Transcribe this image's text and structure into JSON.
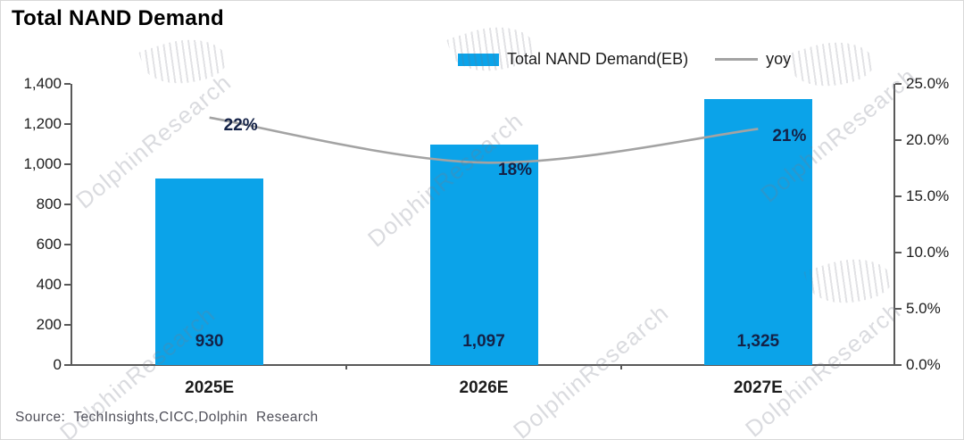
{
  "legend": {
    "items": [
      {
        "label": "Total NAND Demand(EB)",
        "marker": "bar-swatch",
        "color": "#0ba3e9"
      },
      {
        "label": "yoy",
        "marker": "line",
        "color": "#a3a3a3"
      }
    ]
  },
  "source_note": "Source:  TechInsights,CICC,Dolphin  Research",
  "watermark_text": "DolphinResearch",
  "chart_data": {
    "type": "bar",
    "title": "Total NAND Demand",
    "categories": [
      "2025E",
      "2026E",
      "2027E"
    ],
    "series": [
      {
        "name": "Total NAND Demand(EB)",
        "type": "bar",
        "axis": "left",
        "color": "#0ba3e9",
        "values": [
          930,
          1097,
          1325
        ],
        "data_labels": [
          "930",
          "1,097",
          "1,325"
        ]
      },
      {
        "name": "yoy",
        "type": "line",
        "axis": "right",
        "color": "#a3a3a3",
        "values_percent": [
          22,
          18,
          21
        ],
        "data_labels": [
          "22%",
          "18%",
          "21%"
        ]
      }
    ],
    "left_axis": {
      "min": 0,
      "max": 1400,
      "tick_step": 200,
      "tick_labels": [
        "1,400",
        "1,200",
        "1,000",
        "800",
        "600",
        "400",
        "200",
        "0"
      ]
    },
    "right_axis": {
      "min_percent": 0,
      "max_percent": 25,
      "tick_step_percent": 5,
      "tick_labels": [
        "25.0%",
        "20.0%",
        "15.0%",
        "10.0%",
        "5.0%",
        "0.0%"
      ]
    },
    "grid": false,
    "legend_position": "top-center"
  },
  "colors": {
    "bar_fill": "#0ba3e9",
    "line_stroke": "#a3a3a3",
    "data_label": "#142247",
    "axis_line": "#595959",
    "axis_text": "#1c1c1c",
    "source_text": "#50505a"
  }
}
